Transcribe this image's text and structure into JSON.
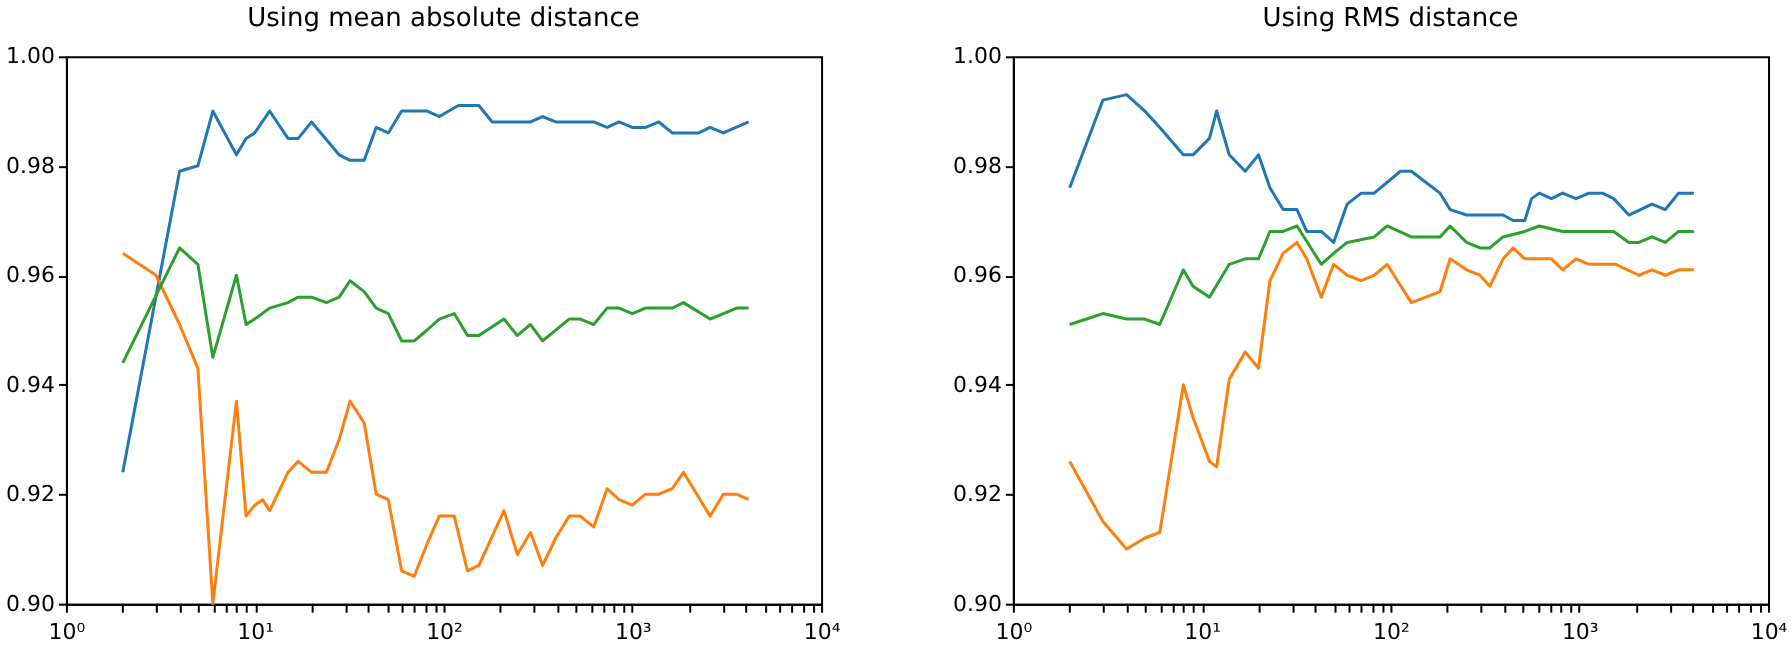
{
  "chart_data": [
    {
      "type": "line",
      "title": "Using mean absolute distance",
      "grid": false,
      "xlim": [
        1,
        10000
      ],
      "ylim": [
        0.9,
        1.0
      ],
      "xticks": [
        {
          "value": 1,
          "label": "10⁰"
        },
        {
          "value": 2,
          "label": null
        },
        {
          "value": 3,
          "label": null
        },
        {
          "value": 4,
          "label": null
        },
        {
          "value": 5,
          "label": null
        },
        {
          "value": 6,
          "label": null
        },
        {
          "value": 7,
          "label": null
        },
        {
          "value": 8,
          "label": null
        },
        {
          "value": 9,
          "label": null
        },
        {
          "value": 10,
          "label": "10¹"
        },
        {
          "value": 20,
          "label": null
        },
        {
          "value": 30,
          "label": null
        },
        {
          "value": 40,
          "label": null
        },
        {
          "value": 50,
          "label": null
        },
        {
          "value": 60,
          "label": null
        },
        {
          "value": 70,
          "label": null
        },
        {
          "value": 80,
          "label": null
        },
        {
          "value": 90,
          "label": null
        },
        {
          "value": 100,
          "label": "10²"
        },
        {
          "value": 200,
          "label": null
        },
        {
          "value": 300,
          "label": null
        },
        {
          "value": 400,
          "label": null
        },
        {
          "value": 500,
          "label": null
        },
        {
          "value": 600,
          "label": null
        },
        {
          "value": 700,
          "label": null
        },
        {
          "value": 800,
          "label": null
        },
        {
          "value": 900,
          "label": null
        },
        {
          "value": 1000,
          "label": "10³"
        },
        {
          "value": 2000,
          "label": null
        },
        {
          "value": 3000,
          "label": null
        },
        {
          "value": 4000,
          "label": null
        },
        {
          "value": 5000,
          "label": null
        },
        {
          "value": 6000,
          "label": null
        },
        {
          "value": 7000,
          "label": null
        },
        {
          "value": 8000,
          "label": null
        },
        {
          "value": 9000,
          "label": null
        },
        {
          "value": 10000,
          "label": "10⁴"
        }
      ],
      "yticks": [
        {
          "value": 0.9,
          "label": "0.90"
        },
        {
          "value": 0.92,
          "label": "0.92"
        },
        {
          "value": 0.94,
          "label": "0.94"
        },
        {
          "value": 0.96,
          "label": "0.96"
        },
        {
          "value": 0.98,
          "label": "0.98"
        },
        {
          "value": 1.0,
          "label": "1.00"
        }
      ],
      "log": "x",
      "series": [
        {
          "color": "#1f77b4",
          "x": [
            2,
            4,
            5,
            6,
            8,
            9,
            10,
            12,
            15,
            17,
            20,
            28,
            32,
            38,
            44,
            51,
            60,
            82,
            95,
            120,
            154,
            181,
            209,
            289,
            335,
            393,
            625,
            735,
            851,
            1000,
            1175,
            1383,
            1627,
            2249,
            2583,
            3037,
            4130
          ],
          "values": [
            0.924,
            0.979,
            0.98,
            0.99,
            0.982,
            0.985,
            0.986,
            0.99,
            0.985,
            0.985,
            0.988,
            0.982,
            0.981,
            0.981,
            0.987,
            0.986,
            0.99,
            0.99,
            0.989,
            0.991,
            0.991,
            0.988,
            0.988,
            0.988,
            0.989,
            0.988,
            0.988,
            0.987,
            0.988,
            0.987,
            0.987,
            0.988,
            0.986,
            0.986,
            0.987,
            0.986,
            0.988
          ]
        },
        {
          "color": "#ff7f0e",
          "x": [
            2,
            3,
            4,
            5,
            6,
            8,
            9,
            10,
            11,
            12,
            15,
            17,
            20,
            24,
            28,
            32,
            38,
            44,
            51,
            60,
            70,
            82,
            95,
            114,
            134,
            154,
            209,
            246,
            289,
            335,
            393,
            463,
            531,
            625,
            735,
            851,
            1000,
            1175,
            1383,
            1627,
            1867,
            2583,
            3037,
            3570,
            4130
          ],
          "values": [
            0.964,
            0.96,
            0.951,
            0.943,
            0.9,
            0.937,
            0.916,
            0.918,
            0.919,
            0.917,
            0.924,
            0.926,
            0.924,
            0.924,
            0.93,
            0.937,
            0.933,
            0.92,
            0.919,
            0.906,
            0.905,
            0.911,
            0.916,
            0.916,
            0.906,
            0.907,
            0.917,
            0.909,
            0.913,
            0.907,
            0.912,
            0.916,
            0.916,
            0.914,
            0.921,
            0.919,
            0.918,
            0.92,
            0.92,
            0.921,
            0.924,
            0.916,
            0.92,
            0.92,
            0.919
          ]
        },
        {
          "color": "#2ca02c",
          "x": [
            2,
            4,
            5,
            6,
            8,
            9,
            10,
            12,
            15,
            17,
            20,
            24,
            28,
            32,
            38,
            44,
            51,
            60,
            70,
            82,
            95,
            114,
            134,
            154,
            209,
            246,
            289,
            335,
            463,
            531,
            625,
            735,
            851,
            1000,
            1175,
            1383,
            1627,
            1867,
            2583,
            3037,
            3570,
            4130
          ],
          "values": [
            0.944,
            0.965,
            0.962,
            0.945,
            0.96,
            0.951,
            0.952,
            0.954,
            0.955,
            0.956,
            0.956,
            0.955,
            0.956,
            0.959,
            0.957,
            0.954,
            0.953,
            0.948,
            0.948,
            0.95,
            0.952,
            0.953,
            0.949,
            0.949,
            0.952,
            0.949,
            0.951,
            0.948,
            0.952,
            0.952,
            0.951,
            0.954,
            0.954,
            0.953,
            0.954,
            0.954,
            0.954,
            0.955,
            0.952,
            0.953,
            0.954,
            0.954
          ]
        }
      ]
    },
    {
      "type": "line",
      "title": "Using RMS distance",
      "grid": false,
      "xlim": [
        1,
        10000
      ],
      "ylim": [
        0.9,
        1.0
      ],
      "xticks": [
        {
          "value": 1,
          "label": "10⁰"
        },
        {
          "value": 2,
          "label": null
        },
        {
          "value": 3,
          "label": null
        },
        {
          "value": 4,
          "label": null
        },
        {
          "value": 5,
          "label": null
        },
        {
          "value": 6,
          "label": null
        },
        {
          "value": 7,
          "label": null
        },
        {
          "value": 8,
          "label": null
        },
        {
          "value": 9,
          "label": null
        },
        {
          "value": 10,
          "label": "10¹"
        },
        {
          "value": 20,
          "label": null
        },
        {
          "value": 30,
          "label": null
        },
        {
          "value": 40,
          "label": null
        },
        {
          "value": 50,
          "label": null
        },
        {
          "value": 60,
          "label": null
        },
        {
          "value": 70,
          "label": null
        },
        {
          "value": 80,
          "label": null
        },
        {
          "value": 90,
          "label": null
        },
        {
          "value": 100,
          "label": "10²"
        },
        {
          "value": 200,
          "label": null
        },
        {
          "value": 300,
          "label": null
        },
        {
          "value": 400,
          "label": null
        },
        {
          "value": 500,
          "label": null
        },
        {
          "value": 600,
          "label": null
        },
        {
          "value": 700,
          "label": null
        },
        {
          "value": 800,
          "label": null
        },
        {
          "value": 900,
          "label": null
        },
        {
          "value": 1000,
          "label": "10³"
        },
        {
          "value": 2000,
          "label": null
        },
        {
          "value": 3000,
          "label": null
        },
        {
          "value": 4000,
          "label": null
        },
        {
          "value": 5000,
          "label": null
        },
        {
          "value": 6000,
          "label": null
        },
        {
          "value": 7000,
          "label": null
        },
        {
          "value": 8000,
          "label": null
        },
        {
          "value": 9000,
          "label": null
        },
        {
          "value": 10000,
          "label": "10⁴"
        }
      ],
      "yticks": [
        {
          "value": 0.9,
          "label": "0.90"
        },
        {
          "value": 0.92,
          "label": "0.92"
        },
        {
          "value": 0.94,
          "label": "0.94"
        },
        {
          "value": 0.96,
          "label": "0.96"
        },
        {
          "value": 0.98,
          "label": "0.98"
        },
        {
          "value": 1.0,
          "label": "1.00"
        }
      ],
      "log": "x",
      "series": [
        {
          "color": "#1f77b4",
          "x": [
            2,
            3,
            4,
            5,
            6,
            8,
            9,
            11,
            12,
            14,
            17,
            20,
            23,
            27,
            32,
            36,
            43,
            50,
            59,
            70,
            82,
            113,
            129,
            183,
            207,
            253,
            298,
            395,
            446,
            515,
            559,
            615,
            712,
            817,
            960,
            1129,
            1327,
            1522,
            1832,
            2430,
            2857,
            3360,
            4047
          ],
          "values": [
            0.976,
            0.992,
            0.993,
            0.99,
            0.987,
            0.982,
            0.982,
            0.985,
            0.99,
            0.982,
            0.979,
            0.982,
            0.976,
            0.972,
            0.972,
            0.968,
            0.968,
            0.966,
            0.973,
            0.975,
            0.975,
            0.979,
            0.979,
            0.975,
            0.972,
            0.971,
            0.971,
            0.971,
            0.97,
            0.97,
            0.974,
            0.975,
            0.974,
            0.975,
            0.974,
            0.975,
            0.975,
            0.974,
            0.971,
            0.973,
            0.972,
            0.975,
            0.975
          ]
        },
        {
          "color": "#ff7f0e",
          "x": [
            2,
            3,
            4,
            5,
            6,
            8,
            9,
            11,
            12,
            14,
            17,
            20,
            23,
            27,
            32,
            36,
            43,
            50,
            59,
            70,
            82,
            96,
            129,
            183,
            207,
            253,
            298,
            336,
            395,
            446,
            515,
            712,
            817,
            960,
            1129,
            1560,
            2070,
            2430,
            2857,
            3360,
            4047
          ],
          "values": [
            0.926,
            0.915,
            0.91,
            0.912,
            0.913,
            0.94,
            0.934,
            0.926,
            0.925,
            0.941,
            0.946,
            0.943,
            0.959,
            0.964,
            0.966,
            0.963,
            0.956,
            0.962,
            0.96,
            0.959,
            0.96,
            0.962,
            0.955,
            0.957,
            0.963,
            0.961,
            0.96,
            0.958,
            0.963,
            0.965,
            0.963,
            0.963,
            0.961,
            0.963,
            0.962,
            0.962,
            0.96,
            0.961,
            0.96,
            0.961,
            0.961
          ]
        },
        {
          "color": "#2ca02c",
          "x": [
            2,
            3,
            4,
            5,
            6,
            8,
            9,
            11,
            14,
            17,
            20,
            23,
            27,
            32,
            43,
            50,
            59,
            82,
            96,
            129,
            183,
            207,
            253,
            298,
            336,
            395,
            515,
            615,
            817,
            960,
            1327,
            1522,
            1832,
            2070,
            2430,
            2857,
            3360,
            4047
          ],
          "values": [
            0.951,
            0.953,
            0.952,
            0.952,
            0.951,
            0.961,
            0.958,
            0.956,
            0.962,
            0.963,
            0.963,
            0.968,
            0.968,
            0.969,
            0.962,
            0.964,
            0.966,
            0.967,
            0.969,
            0.967,
            0.967,
            0.969,
            0.966,
            0.965,
            0.965,
            0.967,
            0.968,
            0.969,
            0.968,
            0.968,
            0.968,
            0.968,
            0.966,
            0.966,
            0.967,
            0.966,
            0.968,
            0.968
          ]
        }
      ]
    }
  ]
}
